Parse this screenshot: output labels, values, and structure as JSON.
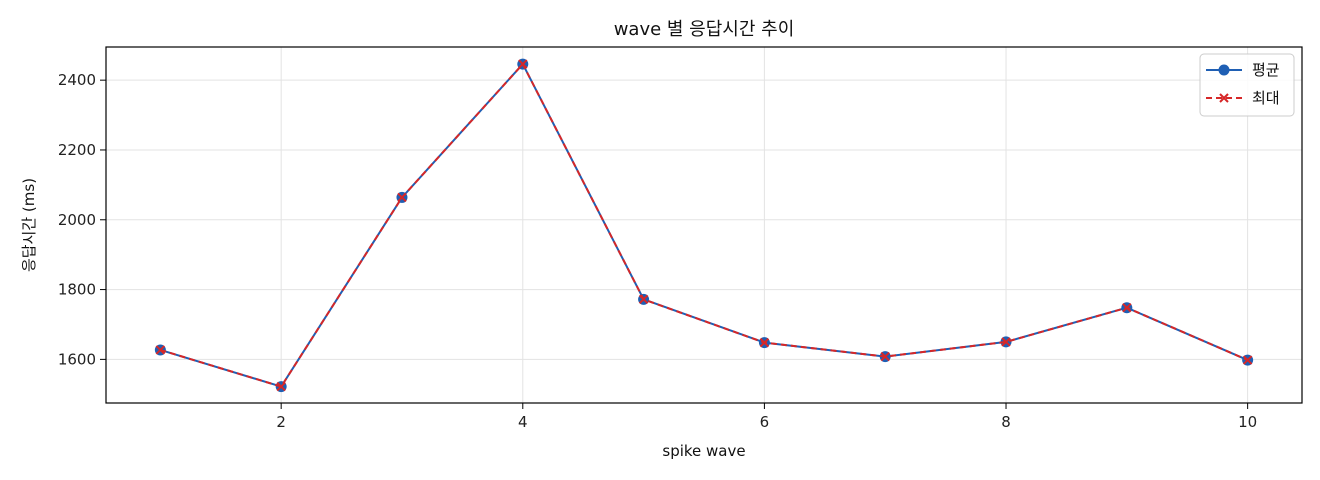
{
  "chart_data": {
    "type": "line",
    "title": "wave 별 응답시간 추이",
    "xlabel": "spike wave",
    "ylabel": "응답시간 (ms)",
    "x": [
      1,
      2,
      3,
      4,
      5,
      6,
      7,
      8,
      9,
      10
    ],
    "xlim": [
      0.55,
      10.45
    ],
    "ylim": [
      1475,
      2495
    ],
    "xticks": [
      2,
      4,
      6,
      8,
      10
    ],
    "yticks": [
      1600,
      1800,
      2000,
      2200,
      2400
    ],
    "grid": true,
    "legend_position": "top-right",
    "series": [
      {
        "name": "평균",
        "values": [
          1627,
          1522,
          2064,
          2446,
          1772,
          1648,
          1608,
          1650,
          1748,
          1598
        ],
        "color": "#1f5fb4",
        "marker": "circle",
        "line_style": "solid"
      },
      {
        "name": "최대",
        "values": [
          1627,
          1522,
          2064,
          2446,
          1772,
          1648,
          1608,
          1650,
          1748,
          1598
        ],
        "color": "#d62728",
        "marker": "x",
        "line_style": "dashed"
      }
    ]
  }
}
